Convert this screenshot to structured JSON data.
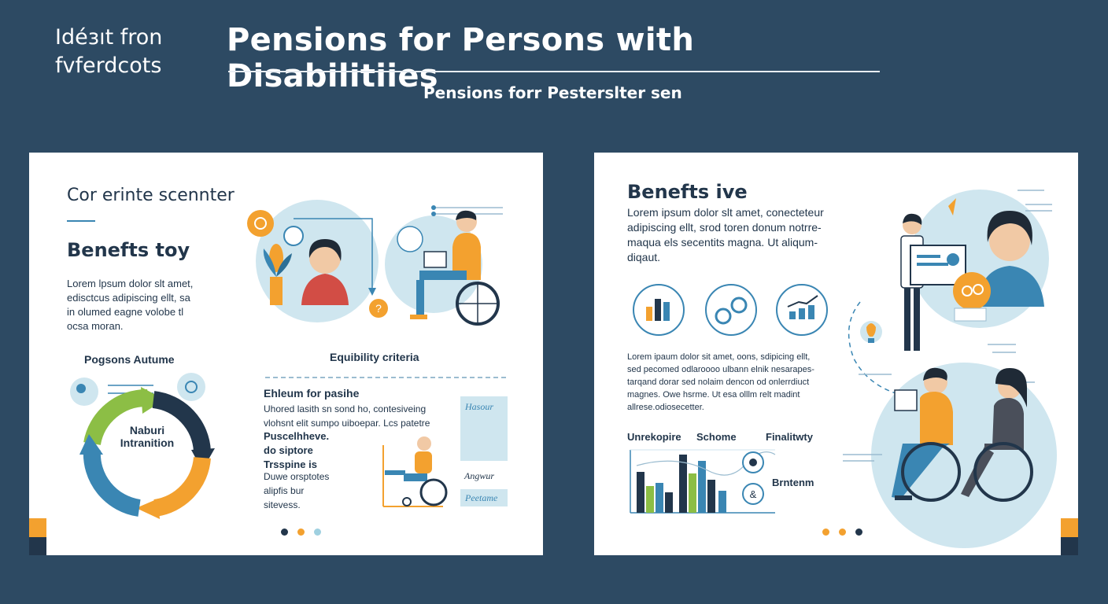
{
  "brand": {
    "line1": "Idéɜıt fron",
    "line2": "fvferdcots"
  },
  "header": {
    "title": "Pensions for Persons with Disabilitiies",
    "subtitle": "Pensions forr Pesterslter sen"
  },
  "left_slide": {
    "heading": "Cor erinte scennter",
    "benefits_title": "Benefts toy",
    "intro_text": [
      "Lorem lpsum dolor slt amet,",
      "edisctcus adipiscing ellt, sa",
      "in olumed eagne volobe tl",
      "ocsa moran."
    ],
    "cycle_title": "Pogsons Autume",
    "cycle_center": [
      "Naburi",
      "Intranition"
    ],
    "eligibility_title": "Equibility criteria",
    "eligibility_subtitle": "Ehleum for pasihe",
    "eligibility_text": [
      "Uhored lasith sn sond ho, contesiveing",
      "vlohsnt elit sumpo uiboepar. Lcs patetre"
    ],
    "eligibility_bold": [
      "Puscelhheve.",
      "do siptore",
      "Trsspine is"
    ],
    "eligibility_small": [
      "Duwe orsptotes",
      "alipfis bur",
      "sitevess."
    ],
    "side_labels": [
      "Hasour",
      "Angwur",
      "Peetame"
    ],
    "colors": {
      "accent_orange": "#f3a12f",
      "accent_navy": "#22364b",
      "teal": "#3a86b3",
      "green": "#8cbe45",
      "light_blue": "#cfe6ef"
    }
  },
  "right_slide": {
    "title": "Benefts ive",
    "intro_text": [
      "Lorem ipsum dolor slt amet, conecteteur",
      "adipiscing ellt, srod toren donum notrre-",
      "maqua els secentits magna. Ut aliqum-",
      "diqaut."
    ],
    "body_text": [
      "Lorem ipaum dolor sit amet, oons, sdipicing ellt,",
      "sed pecomed odlaroooo ulbann elnik nesarapes-",
      "tarqand dorar sed nolaim dencon od onlerrdiuct",
      "magnes. Owe hsrme. Ut esa olllm relt madint",
      "allrese.odiosecetter."
    ],
    "chart_labels": [
      "Unrekopire",
      "Schome",
      "Finalitwty",
      "Brntenm"
    ],
    "chart_colors": {
      "navy": "#22364b",
      "blue": "#3a86b3",
      "green": "#8cbe45",
      "orange": "#f3a12f"
    }
  }
}
